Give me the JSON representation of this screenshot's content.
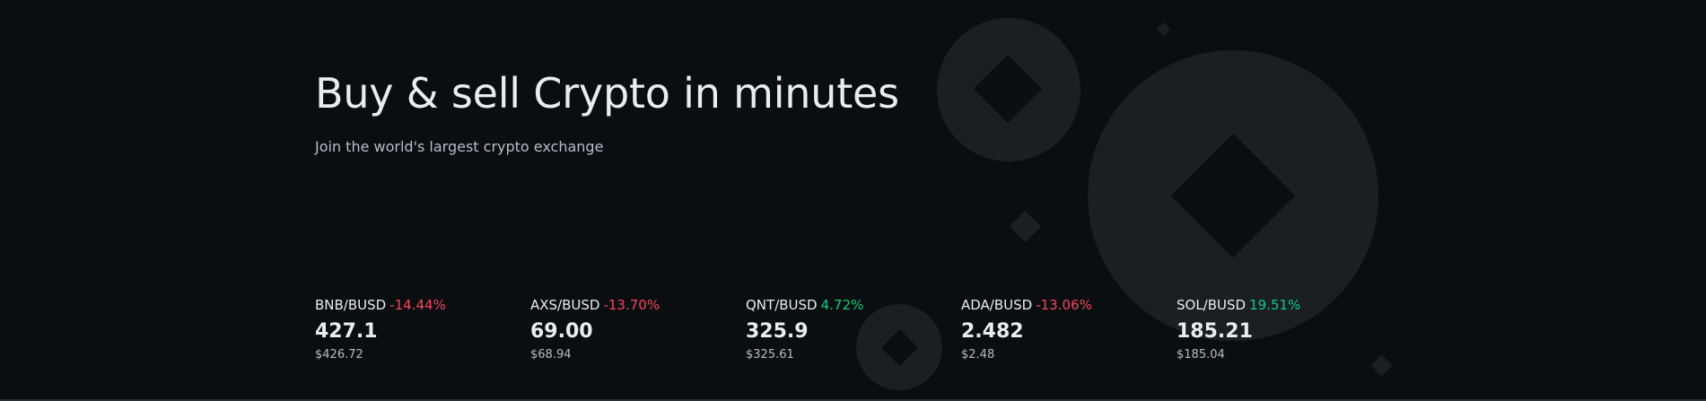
{
  "hero": {
    "title": "Buy & sell Crypto in minutes",
    "subtitle": "Join the world's largest crypto exchange"
  },
  "markets": [
    {
      "pair": "BNB/BUSD",
      "change": "-14.44%",
      "direction": "down",
      "price": "427.1",
      "usd": "$426.72"
    },
    {
      "pair": "AXS/BUSD",
      "change": "-13.70%",
      "direction": "down",
      "price": "69.00",
      "usd": "$68.94"
    },
    {
      "pair": "QNT/BUSD",
      "change": "4.72%",
      "direction": "up",
      "price": "325.9",
      "usd": "$325.61"
    },
    {
      "pair": "ADA/BUSD",
      "change": "-13.06%",
      "direction": "down",
      "price": "2.482",
      "usd": "$2.48"
    },
    {
      "pair": "SOL/BUSD",
      "change": "19.51%",
      "direction": "up",
      "price": "185.21",
      "usd": "$185.04"
    }
  ],
  "colors": {
    "background": "#0b0e11",
    "text_primary": "#eaecef",
    "text_secondary": "#b7bdc6",
    "negative": "#f6465d",
    "positive": "#0ecb81",
    "decor": "#1b1e22"
  },
  "decor_icons": [
    "coin-icon",
    "coin-icon",
    "coin-icon",
    "diamond-icon",
    "diamond-icon",
    "diamond-icon"
  ]
}
